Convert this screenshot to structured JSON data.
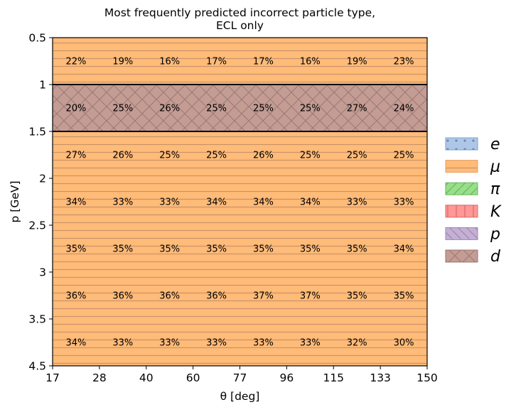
{
  "chart_data": {
    "type": "heatmap",
    "title": [
      "Most frequently predicted incorrect particle type,",
      "ECL only"
    ],
    "xlabel": "θ [deg]",
    "ylabel": "p [GeV]",
    "x_bin_edges": [
      17,
      28,
      40,
      60,
      77,
      96,
      115,
      133,
      150
    ],
    "y_bin_edges": [
      0.5,
      1,
      1.5,
      2,
      2.5,
      3,
      3.5,
      4.5
    ],
    "x_tick_labels": [
      "17",
      "28",
      "40",
      "60",
      "77",
      "96",
      "115",
      "133",
      "150"
    ],
    "y_tick_labels": [
      "0.5",
      "1",
      "1.5",
      "2",
      "2.5",
      "3",
      "3.5",
      "4.5"
    ],
    "rows": [
      {
        "class": "μ",
        "values": [
          "22%",
          "19%",
          "16%",
          "17%",
          "17%",
          "16%",
          "19%",
          "23%"
        ]
      },
      {
        "class": "d",
        "values": [
          "20%",
          "25%",
          "26%",
          "25%",
          "25%",
          "25%",
          "27%",
          "24%"
        ]
      },
      {
        "class": "μ",
        "values": [
          "27%",
          "26%",
          "25%",
          "25%",
          "26%",
          "25%",
          "25%",
          "25%"
        ]
      },
      {
        "class": "μ",
        "values": [
          "34%",
          "33%",
          "33%",
          "34%",
          "34%",
          "34%",
          "33%",
          "33%"
        ]
      },
      {
        "class": "μ",
        "values": [
          "35%",
          "35%",
          "35%",
          "35%",
          "35%",
          "35%",
          "35%",
          "34%"
        ]
      },
      {
        "class": "μ",
        "values": [
          "36%",
          "36%",
          "36%",
          "36%",
          "37%",
          "37%",
          "35%",
          "35%"
        ]
      },
      {
        "class": "μ",
        "values": [
          "34%",
          "33%",
          "33%",
          "33%",
          "33%",
          "33%",
          "32%",
          "30%"
        ]
      }
    ],
    "legend": {
      "placement": "right",
      "entries": [
        {
          "label": "e",
          "color": "#aec7e8",
          "edge": "#7f9fc8",
          "hatch": "dots"
        },
        {
          "label": "μ",
          "color": "#ffbb78",
          "edge": "#e8a060",
          "hatch": "horizontal"
        },
        {
          "label": "π",
          "color": "#98df8a",
          "edge": "#6cb35e",
          "hatch": "diagonal"
        },
        {
          "label": "K",
          "color": "#ff9896",
          "edge": "#d96a68",
          "hatch": "vertical"
        },
        {
          "label": "p",
          "color": "#c5b0d5",
          "edge": "#9d87ad",
          "hatch": "backslash"
        },
        {
          "label": "d",
          "color": "#c49c94",
          "edge": "#9a766e",
          "hatch": "cross"
        }
      ]
    },
    "grid": false
  }
}
